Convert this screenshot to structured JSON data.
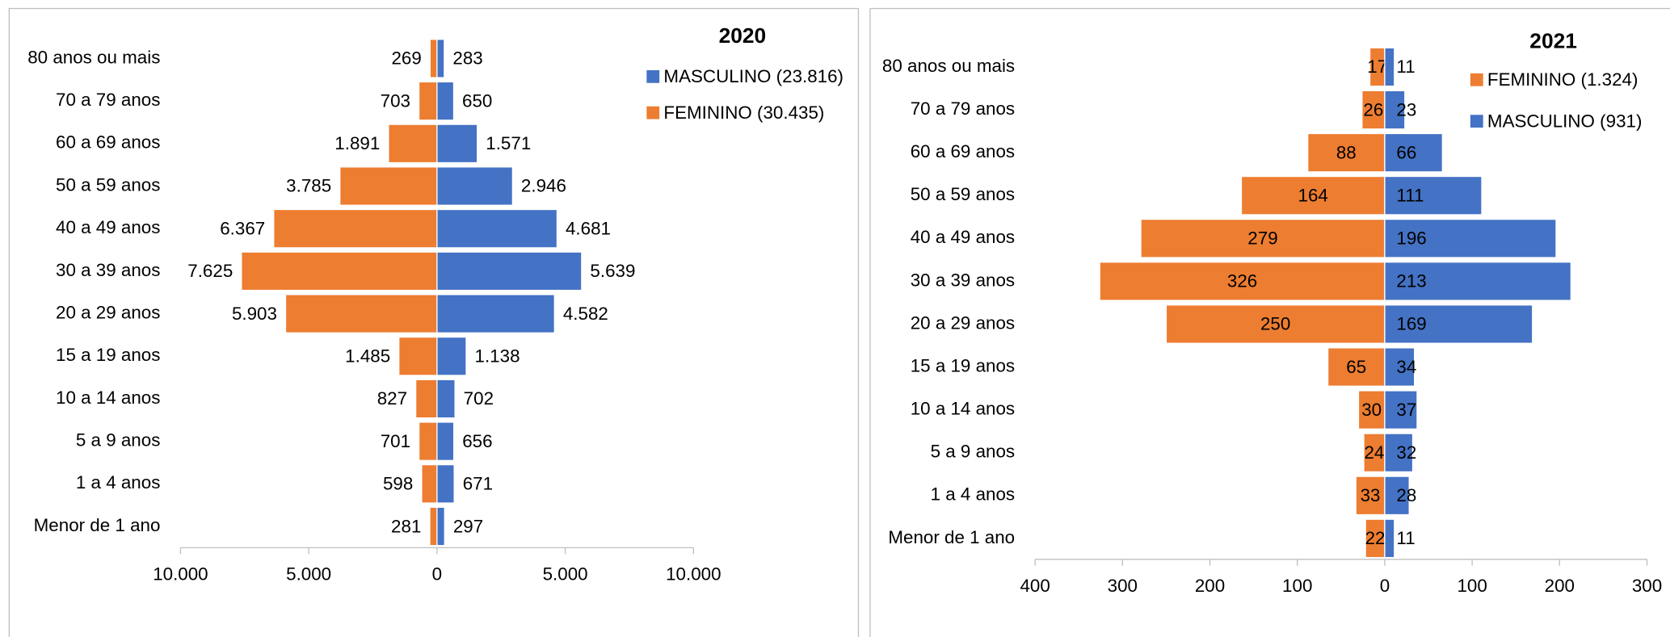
{
  "chart_data": [
    {
      "type": "pyramid",
      "title": "2020",
      "categories": [
        "80 anos ou mais",
        "70 a 79 anos",
        "60 a 69 anos",
        "50 a 59 anos",
        "40 a 49 anos",
        "30 a 39 anos",
        "20 a 29 anos",
        "15 a 19 anos",
        "10 a 14 anos",
        "5 a 9 anos",
        "1 a 4 anos",
        "Menor de 1 ano"
      ],
      "series": [
        {
          "name": "MASCULINO (23.816)",
          "color": "#4472c4",
          "values": [
            283,
            650,
            1571,
            2946,
            4681,
            5639,
            4582,
            1138,
            702,
            656,
            671,
            297
          ],
          "value_labels": [
            "283",
            "650",
            "1.571",
            "2.946",
            "4.681",
            "5.639",
            "4.582",
            "1.138",
            "702",
            "656",
            "671",
            "297"
          ]
        },
        {
          "name": "FEMININO (30.435)",
          "color": "#ed7d31",
          "values": [
            269,
            703,
            1891,
            3785,
            6367,
            7625,
            5903,
            1485,
            827,
            701,
            598,
            281
          ],
          "value_labels": [
            "269",
            "703",
            "1.891",
            "3.785",
            "6.367",
            "7.625",
            "5.903",
            "1.485",
            "827",
            "701",
            "598",
            "281"
          ]
        }
      ],
      "xlim": [
        -10000,
        10000
      ],
      "xticks": [
        {
          "value": -10000,
          "label": "10.000"
        },
        {
          "value": -5000,
          "label": "5.000"
        },
        0,
        {
          "value": 5000,
          "label": "5.000"
        },
        {
          "value": 10000,
          "label": "10.000"
        }
      ]
    },
    {
      "type": "pyramid",
      "title": "2021",
      "categories": [
        "80 anos ou mais",
        "70 a 79 anos",
        "60 a 69 anos",
        "50 a 59 anos",
        "40 a 49 anos",
        "30 a 39 anos",
        "20 a 29 anos",
        "15 a 19 anos",
        "10 a 14 anos",
        "5 a 9 anos",
        "1 a 4 anos",
        "Menor de 1 ano"
      ],
      "series": [
        {
          "name": "FEMININO (1.324)",
          "color": "#ed7d31",
          "values": [
            17,
            26,
            88,
            164,
            279,
            326,
            250,
            65,
            30,
            24,
            33,
            22
          ]
        },
        {
          "name": "MASCULINO (931)",
          "color": "#4472c4",
          "values": [
            11,
            23,
            66,
            111,
            196,
            213,
            169,
            34,
            37,
            32,
            28,
            11
          ]
        }
      ],
      "xlim": [
        -400,
        300
      ],
      "xticks": [
        {
          "value": -400,
          "label": "400"
        },
        {
          "value": -300,
          "label": "300"
        },
        {
          "value": -200,
          "label": "200"
        },
        {
          "value": -100,
          "label": "100"
        },
        0,
        100,
        200,
        300
      ]
    }
  ]
}
